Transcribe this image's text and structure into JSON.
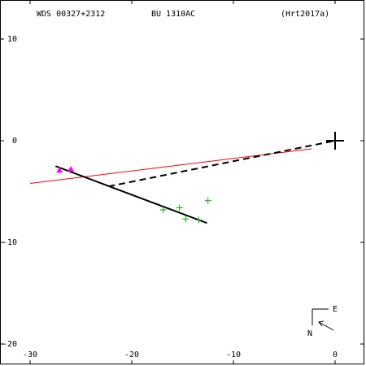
{
  "chart_data": {
    "type": "scatter",
    "title": "WDS 00327+2312",
    "subtitle": "BU 1310AC",
    "annotations": [
      "(Hrt2017a)"
    ],
    "compass": [
      "E",
      "N"
    ],
    "xlim": [
      -32.96,
      2.88
    ],
    "ylim": [
      -22.0,
      13.84
    ],
    "xticks": [
      -30,
      -20,
      -10,
      0
    ],
    "yticks": [
      10,
      0,
      -10,
      -20
    ],
    "series": [
      {
        "style": "line",
        "color": "#ff0000",
        "x": [
          -30,
          -2.3
        ],
        "y": [
          -4.2,
          -0.8
        ]
      },
      {
        "style": "line",
        "color": "#000000",
        "x": [
          -27.5,
          -12.6
        ],
        "y": [
          -2.5,
          -8.1
        ]
      },
      {
        "style": "dashed",
        "color": "#000000",
        "x": [
          -22.3,
          0
        ],
        "y": [
          -4.5,
          0
        ]
      },
      {
        "style": "triangle",
        "color": "#ff00ff",
        "x": [
          -27.1,
          -26.0
        ],
        "y": [
          -2.9,
          -2.8
        ]
      },
      {
        "style": "plus",
        "color": "#00aa00",
        "x": [
          -16.9,
          -15.3,
          -14.7,
          -13.4,
          -12.5
        ],
        "y": [
          -6.8,
          -6.6,
          -7.7,
          -7.8,
          -5.9
        ]
      },
      {
        "style": "bigplus",
        "color": "#000000",
        "x": [
          0
        ],
        "y": [
          0
        ]
      }
    ]
  }
}
